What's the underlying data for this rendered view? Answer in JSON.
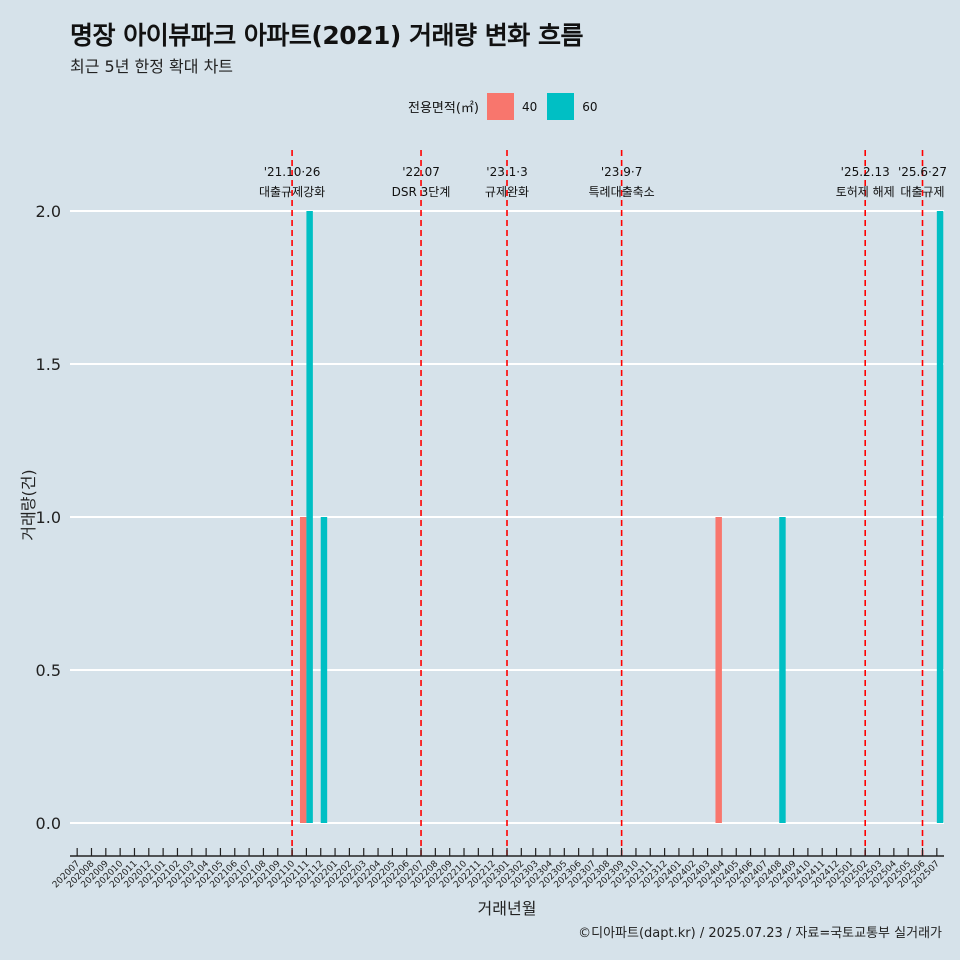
{
  "title": "명장 아이뷰파크 아파트(2021) 거래량 변화 흐름",
  "subtitle": "최근 5년 한정 확대 차트",
  "caption": "©디아파트(dapt.kr) / 2025.07.23 / 자료=국토교통부 실거래가",
  "legend": {
    "title": "전용면적(㎡)",
    "items": [
      {
        "label": "40",
        "color": "#f8766d"
      },
      {
        "label": "60",
        "color": "#00bfc4"
      }
    ]
  },
  "chart_data": {
    "type": "bar",
    "title": "명장 아이뷰파크 아파트(2021) 거래량 변화 흐름",
    "subtitle": "최근 5년 한정 확대 차트",
    "xlabel": "거래년월",
    "ylabel": "거래량(건)",
    "ylim": [
      0,
      2
    ],
    "yticks": [
      "0.0",
      "0.5",
      "1.0",
      "1.5",
      "2.0"
    ],
    "grid": true,
    "legend_position": "top",
    "categories": [
      "202007",
      "202008",
      "202009",
      "202010",
      "202011",
      "202012",
      "202101",
      "202102",
      "202103",
      "202104",
      "202105",
      "202106",
      "202107",
      "202108",
      "202109",
      "202110",
      "202111",
      "202112",
      "202201",
      "202202",
      "202203",
      "202204",
      "202205",
      "202206",
      "202207",
      "202208",
      "202209",
      "202210",
      "202211",
      "202212",
      "202301",
      "202302",
      "202303",
      "202304",
      "202305",
      "202306",
      "202307",
      "202308",
      "202309",
      "202310",
      "202311",
      "202312",
      "202401",
      "202402",
      "202403",
      "202404",
      "202405",
      "202406",
      "202407",
      "202408",
      "202409",
      "202410",
      "202411",
      "202412",
      "202501",
      "202502",
      "202503",
      "202504",
      "202505",
      "202506",
      "202507"
    ],
    "series": [
      {
        "name": "40",
        "color": "#f8766d",
        "points": [
          {
            "x": "202111",
            "y": 1
          },
          {
            "x": "202404",
            "y": 1
          }
        ]
      },
      {
        "name": "60",
        "color": "#00bfc4",
        "points": [
          {
            "x": "202111",
            "y": 2
          },
          {
            "x": "202112",
            "y": 1
          },
          {
            "x": "202408",
            "y": 1
          },
          {
            "x": "202507",
            "y": 2
          }
        ]
      }
    ],
    "events": [
      {
        "label": "'21.10·26",
        "label2": "대출규제강화",
        "x": "202110"
      },
      {
        "label": "'22.07",
        "label2": "DSR 3단계",
        "x": "202207"
      },
      {
        "label": "'23.1·3",
        "label2": "규제완화",
        "x": "202301"
      },
      {
        "label": "'23.9·7",
        "label2": "특례대출축소",
        "x": "202309"
      },
      {
        "label": "'25.2.13",
        "label2": "토허제 해제",
        "x": "202502"
      },
      {
        "label": "'25.6·27",
        "label2": "대출규제",
        "x": "202506"
      }
    ]
  }
}
